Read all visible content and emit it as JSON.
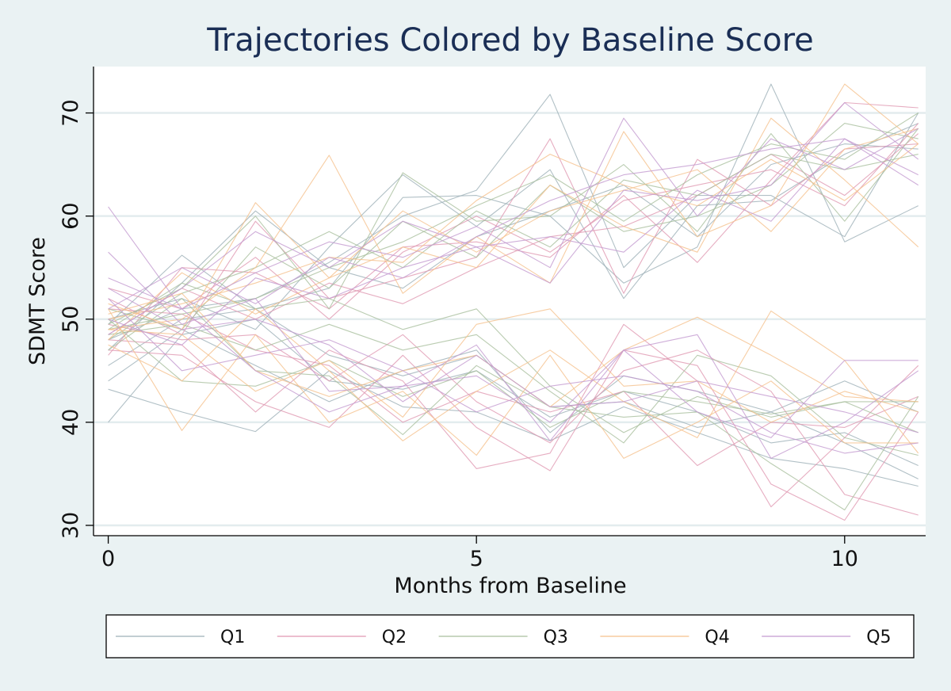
{
  "chart_data": {
    "type": "line",
    "title": "Trajectories Colored by Baseline Score",
    "xlabel": "Months from Baseline",
    "ylabel": "SDMT Score",
    "xlim": [
      -0.2,
      11.1
    ],
    "ylim": [
      29,
      74.5
    ],
    "x": [
      0,
      1,
      2,
      3,
      4,
      5,
      6,
      7,
      8,
      9,
      10,
      11
    ],
    "x_ticks": [
      0,
      5,
      10
    ],
    "y_ticks": [
      30,
      40,
      50,
      60,
      70
    ],
    "grid": "horizontal",
    "legend_position": "bottom",
    "background_color": "#eaf2f3",
    "plot_background": "#ffffff",
    "groups": [
      {
        "name": "Q1",
        "color": "#9db0b8",
        "series": [
          {
            "values": [
              43.2,
              41.0,
              39.1,
              45.0,
              41.5,
              41.0,
              38.2,
              41.5,
              39.0,
              36.5,
              35.5,
              33.8
            ]
          },
          {
            "values": [
              40.0,
              48.5,
              50.0,
              44.0,
              43.2,
              45.0,
              40.5,
              43.0,
              41.0,
              38.0,
              39.0,
              35.8
            ]
          },
          {
            "values": [
              44.0,
              49.0,
              45.5,
              42.0,
              45.0,
              47.0,
              39.0,
              44.5,
              43.0,
              41.0,
              44.0,
              41.0
            ]
          },
          {
            "values": [
              45.5,
              50.0,
              51.0,
              46.5,
              44.5,
              46.5,
              41.5,
              42.0,
              39.5,
              41.0,
              38.0,
              34.5
            ]
          },
          {
            "values": [
              49.5,
              56.2,
              51.0,
              53.0,
              61.8,
              62.0,
              60.0,
              53.5,
              57.0,
              72.8,
              57.5,
              61.0
            ]
          },
          {
            "values": [
              48.0,
              51.0,
              52.0,
              55.5,
              60.0,
              62.5,
              71.8,
              55.0,
              62.0,
              62.0,
              58.0,
              70.0
            ]
          },
          {
            "values": [
              47.0,
              53.5,
              60.5,
              55.0,
              53.0,
              58.0,
              60.5,
              63.0,
              58.0,
              65.0,
              67.0,
              66.5
            ]
          },
          {
            "values": [
              50.0,
              52.0,
              49.0,
              57.0,
              64.0,
              59.0,
              64.5,
              52.0,
              61.0,
              61.5,
              66.0,
              69.0
            ]
          }
        ]
      },
      {
        "name": "Q2",
        "color": "#e098b2",
        "series": [
          {
            "values": [
              48.0,
              47.5,
              41.0,
              47.0,
              44.0,
              35.5,
              37.0,
              49.5,
              44.0,
              31.8,
              38.5,
              45.5
            ]
          },
          {
            "values": [
              47.0,
              46.5,
              42.0,
              39.5,
              46.5,
              39.5,
              35.3,
              47.0,
              45.5,
              34.0,
              30.5,
              41.0
            ]
          },
          {
            "values": [
              49.5,
              48.0,
              48.5,
              44.0,
              48.5,
              42.0,
              38.0,
              45.0,
              47.0,
              43.0,
              33.0,
              31.0
            ]
          },
          {
            "values": [
              51.0,
              50.5,
              47.0,
              45.5,
              40.0,
              43.0,
              41.0,
              43.0,
              35.8,
              40.0,
              39.5,
              42.5
            ]
          },
          {
            "values": [
              52.0,
              48.5,
              59.5,
              52.0,
              54.0,
              56.0,
              67.5,
              52.5,
              65.5,
              61.0,
              66.5,
              67.0
            ]
          },
          {
            "values": [
              46.5,
              55.0,
              54.5,
              51.0,
              57.0,
              57.5,
              56.0,
              62.0,
              55.5,
              63.5,
              71.0,
              70.5
            ]
          },
          {
            "values": [
              48.5,
              53.0,
              50.0,
              53.5,
              51.5,
              55.0,
              58.0,
              59.0,
              62.0,
              66.0,
              62.0,
              68.0
            ]
          },
          {
            "values": [
              53.0,
              51.0,
              56.0,
              50.0,
              56.5,
              60.0,
              56.5,
              61.5,
              63.0,
              64.5,
              61.0,
              69.0
            ]
          }
        ]
      },
      {
        "name": "Q3",
        "color": "#a9bf9e",
        "series": [
          {
            "values": [
              47.0,
              52.0,
              45.0,
              44.5,
              38.8,
              45.5,
              41.5,
              40.5,
              41.0,
              36.0,
              31.5,
              42.5
            ]
          },
          {
            "values": [
              50.0,
              44.0,
              43.5,
              46.0,
              42.5,
              45.0,
              39.5,
              43.0,
              42.0,
              40.8,
              42.0,
              39.0
            ]
          },
          {
            "values": [
              48.5,
              49.5,
              47.0,
              49.5,
              47.0,
              48.5,
              43.0,
              38.0,
              46.5,
              44.5,
              38.5,
              36.8
            ]
          },
          {
            "values": [
              49.0,
              53.5,
              51.0,
              52.0,
              49.0,
              51.0,
              43.5,
              39.0,
              42.5,
              40.5,
              42.0,
              42.0
            ]
          },
          {
            "values": [
              49.5,
              53.0,
              60.0,
              51.0,
              64.2,
              59.5,
              60.0,
              65.0,
              58.5,
              68.0,
              59.5,
              68.5
            ]
          },
          {
            "values": [
              48.0,
              52.5,
              55.0,
              58.5,
              55.0,
              60.5,
              57.0,
              63.5,
              62.0,
              66.0,
              64.5,
              66.0
            ]
          },
          {
            "values": [
              51.0,
              49.0,
              57.0,
              53.0,
              59.5,
              56.0,
              63.0,
              58.5,
              60.0,
              63.0,
              69.0,
              67.5
            ]
          },
          {
            "values": [
              49.0,
              50.5,
              52.0,
              55.0,
              57.5,
              61.0,
              64.0,
              59.5,
              64.0,
              67.0,
              65.5,
              70.0
            ]
          }
        ]
      },
      {
        "name": "Q4",
        "color": "#f5c08c",
        "series": [
          {
            "values": [
              51.0,
              39.2,
              48.5,
              40.0,
              43.0,
              36.8,
              46.5,
              36.5,
              40.0,
              44.0,
              38.0,
              38.0
            ]
          },
          {
            "values": [
              47.5,
              44.0,
              51.0,
              45.0,
              38.2,
              43.0,
              47.0,
              42.0,
              38.5,
              50.8,
              46.0,
              37.0
            ]
          },
          {
            "values": [
              49.0,
              48.5,
              43.0,
              46.0,
              40.5,
              49.5,
              51.0,
              43.5,
              44.0,
              40.0,
              43.0,
              41.0
            ]
          },
          {
            "values": [
              50.5,
              52.5,
              45.0,
              42.5,
              45.0,
              46.5,
              41.5,
              47.0,
              50.2,
              46.5,
              42.5,
              42.0
            ]
          },
          {
            "values": [
              51.5,
              49.0,
              61.3,
              54.0,
              57.0,
              55.0,
              63.0,
              59.0,
              56.5,
              69.5,
              63.5,
              57.0
            ]
          },
          {
            "values": [
              49.0,
              50.0,
              55.0,
              65.9,
              52.5,
              58.0,
              53.5,
              68.2,
              58.0,
              61.0,
              72.8,
              67.0
            ]
          },
          {
            "values": [
              48.0,
              54.5,
              50.5,
              54.0,
              60.5,
              56.5,
              60.5,
              62.5,
              64.5,
              58.5,
              66.5,
              68.5
            ]
          },
          {
            "values": [
              50.0,
              51.5,
              53.5,
              56.0,
              55.5,
              61.5,
              66.0,
              63.0,
              61.0,
              65.5,
              61.5,
              67.0
            ]
          }
        ]
      },
      {
        "name": "Q5",
        "color": "#c39ad0",
        "series": [
          {
            "values": [
              60.9,
              51.0,
              45.0,
              41.0,
              43.5,
              47.5,
              38.2,
              47.0,
              48.5,
              36.5,
              40.0,
              45.0
            ]
          },
          {
            "values": [
              56.5,
              49.5,
              52.0,
              43.0,
              43.5,
              44.5,
              40.0,
              47.0,
              41.0,
              38.5,
              46.0,
              46.0
            ]
          },
          {
            "values": [
              53.0,
              49.0,
              50.0,
              47.5,
              42.0,
              46.5,
              41.5,
              42.0,
              44.0,
              42.5,
              41.0,
              39.0
            ]
          },
          {
            "values": [
              52.0,
              45.0,
              46.5,
              48.0,
              45.0,
              41.0,
              43.5,
              44.5,
              43.0,
              39.0,
              37.0,
              38.0
            ]
          },
          {
            "values": [
              54.0,
              51.0,
              54.5,
              57.5,
              56.0,
              59.0,
              55.0,
              69.5,
              60.0,
              67.5,
              64.5,
              68.5
            ]
          },
          {
            "values": [
              48.5,
              53.0,
              58.5,
              55.0,
              59.5,
              57.0,
              58.0,
              56.5,
              62.5,
              59.5,
              67.5,
              63.0
            ]
          },
          {
            "values": [
              50.0,
              47.5,
              54.0,
              52.0,
              55.0,
              57.0,
              53.5,
              62.5,
              61.5,
              63.0,
              71.0,
              65.5
            ]
          },
          {
            "values": [
              51.0,
              55.0,
              51.5,
              56.0,
              54.0,
              58.0,
              61.5,
              64.0,
              65.0,
              66.5,
              67.5,
              64.0
            ]
          }
        ]
      }
    ]
  }
}
